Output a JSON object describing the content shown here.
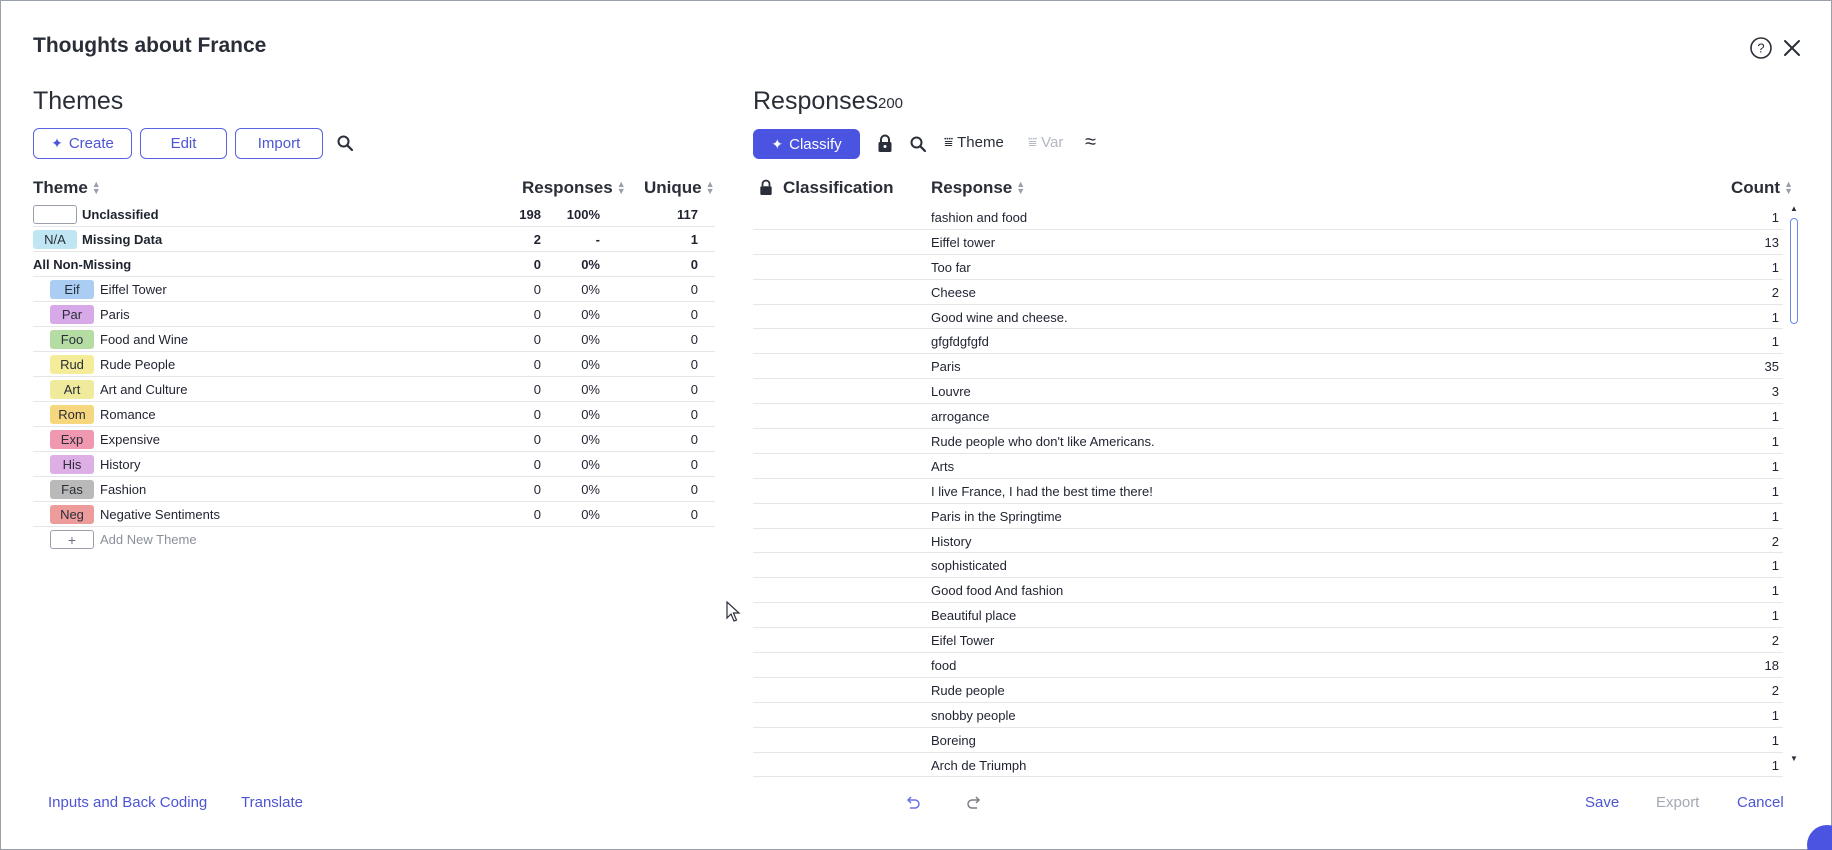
{
  "dialog": {
    "title": "Thoughts about France"
  },
  "themes": {
    "title": "Themes",
    "buttons": {
      "create": "Create",
      "edit": "Edit",
      "import": "Import"
    },
    "columns": {
      "theme": "Theme",
      "responses": "Responses",
      "unique": "Unique"
    },
    "summary_rows": [
      {
        "tag": "",
        "name": "Unclassified",
        "count": "198",
        "pct": "100%",
        "unique": "117"
      },
      {
        "tag": "N/A",
        "name": "Missing Data",
        "count": "2",
        "pct": "-",
        "unique": "1"
      },
      {
        "tag": "",
        "name": "All Non-Missing",
        "count": "0",
        "pct": "0%",
        "unique": "0"
      }
    ],
    "rows": [
      {
        "tag": "Eif",
        "name": "Eiffel Tower",
        "count": "0",
        "pct": "0%",
        "unique": "0",
        "color": "#a9cdf3"
      },
      {
        "tag": "Par",
        "name": "Paris",
        "count": "0",
        "pct": "0%",
        "unique": "0",
        "color": "#d7a9e8"
      },
      {
        "tag": "Foo",
        "name": "Food and Wine",
        "count": "0",
        "pct": "0%",
        "unique": "0",
        "color": "#b5dca2"
      },
      {
        "tag": "Rud",
        "name": "Rude People",
        "count": "0",
        "pct": "0%",
        "unique": "0",
        "color": "#f5ec9a"
      },
      {
        "tag": "Art",
        "name": "Art and Culture",
        "count": "0",
        "pct": "0%",
        "unique": "0",
        "color": "#f0ea9c"
      },
      {
        "tag": "Rom",
        "name": "Romance",
        "count": "0",
        "pct": "0%",
        "unique": "0",
        "color": "#f7d77e"
      },
      {
        "tag": "Exp",
        "name": "Expensive",
        "count": "0",
        "pct": "0%",
        "unique": "0",
        "color": "#ef98b0"
      },
      {
        "tag": "His",
        "name": "History",
        "count": "0",
        "pct": "0%",
        "unique": "0",
        "color": "#deaee6"
      },
      {
        "tag": "Fas",
        "name": "Fashion",
        "count": "0",
        "pct": "0%",
        "unique": "0",
        "color": "#b9b9b9"
      },
      {
        "tag": "Neg",
        "name": "Negative Sentiments",
        "count": "0",
        "pct": "0%",
        "unique": "0",
        "color": "#ed9b9b"
      }
    ],
    "add_new": {
      "icon": "+",
      "label": "Add New Theme"
    }
  },
  "responses": {
    "title": "Responses",
    "count": "200",
    "classify": "Classify",
    "toolbar": {
      "theme": "Theme",
      "var": "Var"
    },
    "columns": {
      "classification": "Classification",
      "response": "Response",
      "count": "Count"
    },
    "rows": [
      {
        "text": "fashion and food",
        "count": "1"
      },
      {
        "text": "Eiffel tower",
        "count": "13"
      },
      {
        "text": "Too far",
        "count": "1"
      },
      {
        "text": "Cheese",
        "count": "2"
      },
      {
        "text": "Good wine and cheese.",
        "count": "1"
      },
      {
        "text": "gfgfdgfgfd",
        "count": "1"
      },
      {
        "text": "Paris",
        "count": "35"
      },
      {
        "text": "Louvre",
        "count": "3"
      },
      {
        "text": "arrogance",
        "count": "1"
      },
      {
        "text": "Rude people who don't like Americans.",
        "count": "1"
      },
      {
        "text": "Arts",
        "count": "1"
      },
      {
        "text": "I live France, I had the best time there!",
        "count": "1"
      },
      {
        "text": "Paris in the Springtime",
        "count": "1"
      },
      {
        "text": "History",
        "count": "2"
      },
      {
        "text": "sophisticated",
        "count": "1"
      },
      {
        "text": "Good food And fashion",
        "count": "1"
      },
      {
        "text": "Beautiful place",
        "count": "1"
      },
      {
        "text": "Eifel Tower",
        "count": "2"
      },
      {
        "text": "food",
        "count": "18"
      },
      {
        "text": "Rude people",
        "count": "2"
      },
      {
        "text": "snobby people",
        "count": "1"
      },
      {
        "text": "Boreing",
        "count": "1"
      },
      {
        "text": "Arch de Triumph",
        "count": "1"
      }
    ]
  },
  "footer": {
    "inputs": "Inputs and Back Coding",
    "translate": "Translate",
    "save": "Save",
    "export": "Export",
    "cancel": "Cancel"
  },
  "colors": {
    "accent": "#4a54e1",
    "na_tag": "#bfe6f2"
  }
}
